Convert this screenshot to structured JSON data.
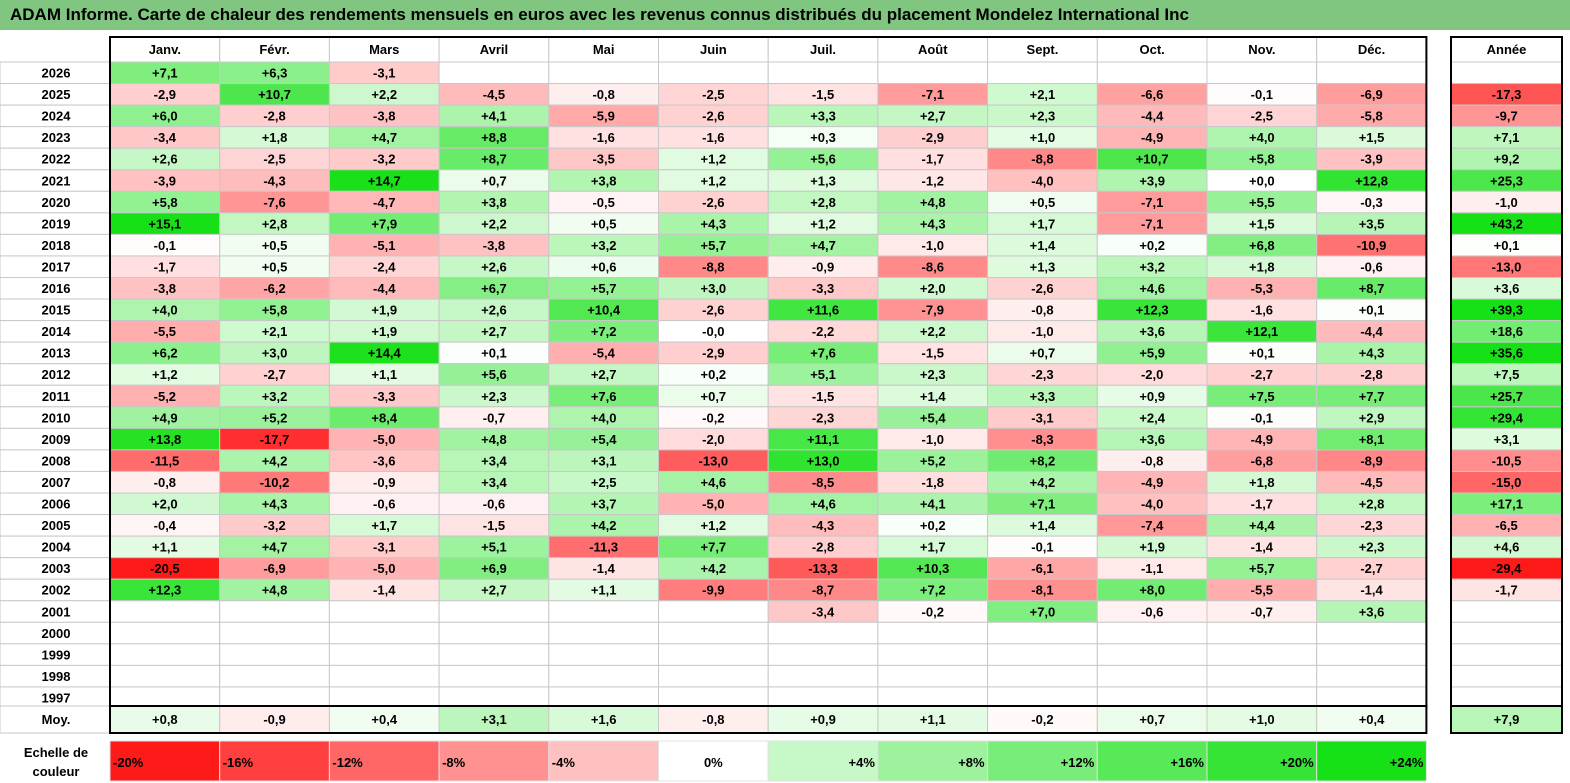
{
  "chart_data": {
    "type": "heatmap",
    "title": "ADAM Informe. Carte de chaleur des rendements mensuels en euros avec les revenus connus distribués du placement Mondelez International Inc",
    "months": [
      "Janv.",
      "Févr.",
      "Mars",
      "Avril",
      "Mai",
      "Juin",
      "Juil.",
      "Août",
      "Sept.",
      "Oct.",
      "Nov.",
      "Déc."
    ],
    "year_label": "Année",
    "avg_label": "Moy.",
    "years": [
      "2026",
      "2025",
      "2024",
      "2023",
      "2022",
      "2021",
      "2020",
      "2019",
      "2018",
      "2017",
      "2016",
      "2015",
      "2014",
      "2013",
      "2012",
      "2011",
      "2010",
      "2009",
      "2008",
      "2007",
      "2006",
      "2005",
      "2004",
      "2003",
      "2002",
      "2001",
      "2000",
      "1999",
      "1998",
      "1997"
    ],
    "values": [
      [
        "+7,1",
        "+6,3",
        "-3,1",
        "",
        "",
        "",
        "",
        "",
        "",
        "",
        "",
        ""
      ],
      [
        "-2,9",
        "+10,7",
        "+2,2",
        "-4,5",
        "-0,8",
        "-2,5",
        "-1,5",
        "-7,1",
        "+2,1",
        "-6,6",
        "-0,1",
        "-6,9"
      ],
      [
        "+6,0",
        "-2,8",
        "-3,8",
        "+4,1",
        "-5,9",
        "-2,6",
        "+3,3",
        "+2,7",
        "+2,3",
        "-4,4",
        "-2,5",
        "-5,8"
      ],
      [
        "-3,4",
        "+1,8",
        "+4,7",
        "+8,8",
        "-1,6",
        "-1,6",
        "+0,3",
        "-2,9",
        "+1,0",
        "-4,9",
        "+4,0",
        "+1,5"
      ],
      [
        "+2,6",
        "-2,5",
        "-3,2",
        "+8,7",
        "-3,5",
        "+1,2",
        "+5,6",
        "-1,7",
        "-8,8",
        "+10,7",
        "+5,8",
        "-3,9"
      ],
      [
        "-3,9",
        "-4,3",
        "+14,7",
        "+0,7",
        "+3,8",
        "+1,2",
        "+1,3",
        "-1,2",
        "-4,0",
        "+3,9",
        "+0,0",
        "+12,8"
      ],
      [
        "+5,8",
        "-7,6",
        "-4,7",
        "+3,8",
        "-0,5",
        "-2,6",
        "+2,8",
        "+4,8",
        "+0,5",
        "-7,1",
        "+5,5",
        "-0,3"
      ],
      [
        "+15,1",
        "+2,8",
        "+7,9",
        "+2,2",
        "+0,5",
        "+4,3",
        "+1,2",
        "+4,3",
        "+1,7",
        "-7,1",
        "+1,5",
        "+3,5"
      ],
      [
        "-0,1",
        "+0,5",
        "-5,1",
        "-3,8",
        "+3,2",
        "+5,7",
        "+4,7",
        "-1,0",
        "+1,4",
        "+0,2",
        "+6,8",
        "-10,9"
      ],
      [
        "-1,7",
        "+0,5",
        "-2,4",
        "+2,6",
        "+0,6",
        "-8,8",
        "-0,9",
        "-8,6",
        "+1,3",
        "+3,2",
        "+1,8",
        "-0,6"
      ],
      [
        "-3,8",
        "-6,2",
        "-4,4",
        "+6,7",
        "+5,7",
        "+3,0",
        "-3,3",
        "+2,0",
        "-2,6",
        "+4,6",
        "-5,3",
        "+8,7"
      ],
      [
        "+4,0",
        "+5,8",
        "+1,9",
        "+2,6",
        "+10,4",
        "-2,6",
        "+11,6",
        "-7,9",
        "-0,8",
        "+12,3",
        "-1,6",
        "+0,1"
      ],
      [
        "-5,5",
        "+2,1",
        "+1,9",
        "+2,7",
        "+7,2",
        "-0,0",
        "-2,2",
        "+2,2",
        "-1,0",
        "+3,6",
        "+12,1",
        "-4,4"
      ],
      [
        "+6,2",
        "+3,0",
        "+14,4",
        "+0,1",
        "-5,4",
        "-2,9",
        "+7,6",
        "-1,5",
        "+0,7",
        "+5,9",
        "+0,1",
        "+4,3"
      ],
      [
        "+1,2",
        "-2,7",
        "+1,1",
        "+5,6",
        "+2,7",
        "+0,2",
        "+5,1",
        "+2,3",
        "-2,3",
        "-2,0",
        "-2,7",
        "-2,8"
      ],
      [
        "-5,2",
        "+3,2",
        "-3,3",
        "+2,3",
        "+7,6",
        "+0,7",
        "-1,5",
        "+1,4",
        "+3,3",
        "+0,9",
        "+7,5",
        "+7,7"
      ],
      [
        "+4,9",
        "+5,2",
        "+8,4",
        "-0,7",
        "+4,0",
        "-0,2",
        "-2,3",
        "+5,4",
        "-3,1",
        "+2,4",
        "-0,1",
        "+2,9"
      ],
      [
        "+13,8",
        "-17,7",
        "-5,0",
        "+4,8",
        "+5,4",
        "-2,0",
        "+11,1",
        "-1,0",
        "-8,3",
        "+3,6",
        "-4,9",
        "+8,1"
      ],
      [
        "-11,5",
        "+4,2",
        "-3,6",
        "+3,4",
        "+3,1",
        "-13,0",
        "+13,0",
        "+5,2",
        "+8,2",
        "-0,8",
        "-6,8",
        "-8,9"
      ],
      [
        "-0,8",
        "-10,2",
        "-0,9",
        "+3,4",
        "+2,5",
        "+4,6",
        "-8,5",
        "-1,8",
        "+4,2",
        "-4,9",
        "+1,8",
        "-4,5"
      ],
      [
        "+2,0",
        "+4,3",
        "-0,6",
        "-0,6",
        "+3,7",
        "-5,0",
        "+4,6",
        "+4,1",
        "+7,1",
        "-4,0",
        "-1,7",
        "+2,8"
      ],
      [
        "-0,4",
        "-3,2",
        "+1,7",
        "-1,5",
        "+4,2",
        "+1,2",
        "-4,3",
        "+0,2",
        "+1,4",
        "-7,4",
        "+4,4",
        "-2,3"
      ],
      [
        "+1,1",
        "+4,7",
        "-3,1",
        "+5,1",
        "-11,3",
        "+7,7",
        "-2,8",
        "+1,7",
        "-0,1",
        "+1,9",
        "-1,4",
        "+2,3"
      ],
      [
        "-20,5",
        "-6,9",
        "-5,0",
        "+6,9",
        "-1,4",
        "+4,2",
        "-13,3",
        "+10,3",
        "-6,1",
        "-1,1",
        "+5,7",
        "-2,7"
      ],
      [
        "+12,3",
        "+4,8",
        "-1,4",
        "+2,7",
        "+1,1",
        "-9,9",
        "-8,7",
        "+7,2",
        "-8,1",
        "+8,0",
        "-5,5",
        "-1,4"
      ],
      [
        "",
        "",
        "",
        "",
        "",
        "",
        "-3,4",
        "-0,2",
        "+7,0",
        "-0,6",
        "-0,7",
        "+3,6"
      ],
      [
        "",
        "",
        "",
        "",
        "",
        "",
        "",
        "",
        "",
        "",
        "",
        ""
      ],
      [
        "",
        "",
        "",
        "",
        "",
        "",
        "",
        "",
        "",
        "",
        "",
        ""
      ],
      [
        "",
        "",
        "",
        "",
        "",
        "",
        "",
        "",
        "",
        "",
        "",
        ""
      ],
      [
        "",
        "",
        "",
        "",
        "",
        "",
        "",
        "",
        "",
        "",
        "",
        ""
      ]
    ],
    "year_totals": [
      "",
      "-17,3",
      "-9,7",
      "+7,1",
      "+9,2",
      "+25,3",
      "-1,0",
      "+43,2",
      "+0,1",
      "-13,0",
      "+3,6",
      "+39,3",
      "+18,6",
      "+35,6",
      "+7,5",
      "+25,7",
      "+29,4",
      "+3,1",
      "-10,5",
      "-15,0",
      "+17,1",
      "-6,5",
      "+4,6",
      "-29,4",
      "-1,7",
      "",
      "",
      "",
      "",
      ""
    ],
    "averages": [
      "+0,8",
      "-0,9",
      "+0,4",
      "+3,1",
      "+1,6",
      "-0,8",
      "+0,9",
      "+1,1",
      "-0,2",
      "+0,7",
      "+1,0",
      "+0,4"
    ],
    "average_total": "+7,9",
    "scale_label_line1": "Echelle de",
    "scale_label_line2": "couleur",
    "scale": [
      "-20%",
      "-16%",
      "-12%",
      "-8%",
      "-4%",
      "0%",
      "+4%",
      "+8%",
      "+12%",
      "+16%",
      "+20%",
      "+24%"
    ],
    "scale_values": [
      -20,
      -16,
      -12,
      -8,
      -4,
      0,
      4,
      8,
      12,
      16,
      20,
      24
    ],
    "colors": {
      "neg_strong": "#ff1a1a",
      "pos_strong": "#16e016",
      "neutral": "#ffffff",
      "title_bg": "#80c680"
    }
  }
}
